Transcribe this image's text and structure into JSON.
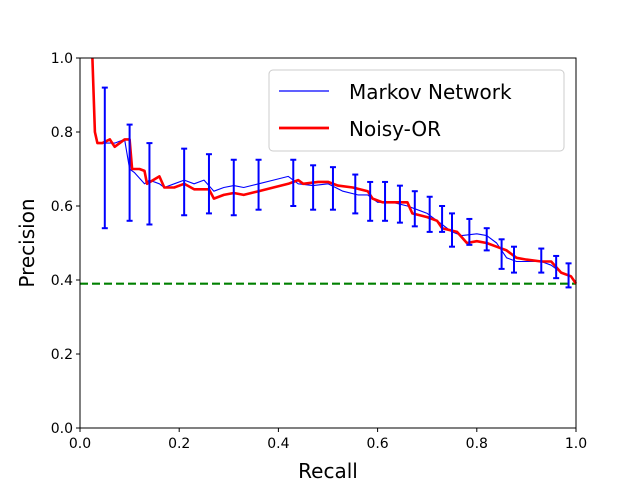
{
  "chart_data": {
    "type": "line",
    "title": "",
    "xlabel": "Recall",
    "ylabel": "Precision",
    "xlim": [
      0.0,
      1.0
    ],
    "ylim": [
      0.0,
      1.0
    ],
    "x_ticks": [
      "0.0",
      "0.2",
      "0.4",
      "0.6",
      "0.8",
      "1.0"
    ],
    "y_ticks": [
      "0.0",
      "0.2",
      "0.4",
      "0.6",
      "0.8",
      "1.0"
    ],
    "grid": false,
    "legend_position": "top-right",
    "series": [
      {
        "name": "Markov Network",
        "color": "#0000ff",
        "style": "solid-thin",
        "x": [
          0.025,
          0.03,
          0.035,
          0.05,
          0.07,
          0.09,
          0.1,
          0.11,
          0.13,
          0.14,
          0.16,
          0.17,
          0.19,
          0.21,
          0.23,
          0.25,
          0.27,
          0.29,
          0.31,
          0.33,
          0.36,
          0.39,
          0.42,
          0.44,
          0.47,
          0.5,
          0.53,
          0.56,
          0.58,
          0.6,
          0.63,
          0.66,
          0.68,
          0.7,
          0.73,
          0.75,
          0.77,
          0.8,
          0.82,
          0.84,
          0.86,
          0.88,
          0.9,
          0.93,
          0.95,
          0.97,
          0.99,
          1.0
        ],
        "y": [
          1.0,
          0.8,
          0.77,
          0.77,
          0.77,
          0.78,
          0.7,
          0.69,
          0.66,
          0.67,
          0.66,
          0.65,
          0.66,
          0.67,
          0.66,
          0.67,
          0.64,
          0.65,
          0.655,
          0.65,
          0.66,
          0.67,
          0.68,
          0.66,
          0.655,
          0.66,
          0.64,
          0.63,
          0.63,
          0.61,
          0.61,
          0.6,
          0.59,
          0.58,
          0.55,
          0.53,
          0.52,
          0.525,
          0.52,
          0.5,
          0.46,
          0.45,
          0.45,
          0.45,
          0.44,
          0.42,
          0.41,
          0.395
        ]
      },
      {
        "name": "Noisy-OR",
        "color": "#ff0000",
        "style": "solid-thick",
        "x": [
          0.025,
          0.03,
          0.035,
          0.045,
          0.06,
          0.07,
          0.09,
          0.1,
          0.105,
          0.12,
          0.13,
          0.135,
          0.16,
          0.17,
          0.19,
          0.21,
          0.23,
          0.26,
          0.27,
          0.29,
          0.31,
          0.33,
          0.36,
          0.39,
          0.42,
          0.44,
          0.45,
          0.48,
          0.5,
          0.52,
          0.55,
          0.58,
          0.59,
          0.61,
          0.63,
          0.66,
          0.67,
          0.7,
          0.72,
          0.73,
          0.76,
          0.78,
          0.8,
          0.82,
          0.84,
          0.86,
          0.88,
          0.9,
          0.93,
          0.95,
          0.97,
          0.99,
          1.0
        ],
        "y": [
          1.0,
          0.8,
          0.77,
          0.77,
          0.78,
          0.76,
          0.78,
          0.78,
          0.7,
          0.7,
          0.695,
          0.66,
          0.68,
          0.65,
          0.65,
          0.66,
          0.645,
          0.645,
          0.62,
          0.63,
          0.635,
          0.63,
          0.64,
          0.65,
          0.66,
          0.67,
          0.66,
          0.665,
          0.665,
          0.655,
          0.65,
          0.64,
          0.62,
          0.61,
          0.61,
          0.61,
          0.58,
          0.57,
          0.56,
          0.54,
          0.53,
          0.5,
          0.505,
          0.5,
          0.49,
          0.48,
          0.46,
          0.455,
          0.45,
          0.45,
          0.42,
          0.41,
          0.39
        ]
      }
    ],
    "error_bars": {
      "series": "Markov Network",
      "color": "#0000ff",
      "x": [
        0.05,
        0.1,
        0.14,
        0.21,
        0.26,
        0.31,
        0.36,
        0.43,
        0.47,
        0.51,
        0.555,
        0.585,
        0.615,
        0.645,
        0.675,
        0.705,
        0.73,
        0.75,
        0.785,
        0.82,
        0.85,
        0.875,
        0.93,
        0.96,
        0.985
      ],
      "y": [
        0.73,
        0.69,
        0.66,
        0.665,
        0.66,
        0.65,
        0.655,
        0.66,
        0.65,
        0.645,
        0.63,
        0.61,
        0.61,
        0.605,
        0.59,
        0.575,
        0.565,
        0.535,
        0.53,
        0.51,
        0.47,
        0.455,
        0.45,
        0.435,
        0.41
      ],
      "lo": [
        0.54,
        0.56,
        0.55,
        0.575,
        0.58,
        0.575,
        0.59,
        0.6,
        0.59,
        0.59,
        0.58,
        0.56,
        0.56,
        0.555,
        0.545,
        0.53,
        0.53,
        0.49,
        0.495,
        0.48,
        0.43,
        0.42,
        0.42,
        0.405,
        0.38
      ],
      "hi": [
        0.92,
        0.82,
        0.77,
        0.755,
        0.74,
        0.725,
        0.725,
        0.725,
        0.71,
        0.705,
        0.685,
        0.665,
        0.665,
        0.655,
        0.64,
        0.625,
        0.6,
        0.58,
        0.565,
        0.54,
        0.51,
        0.49,
        0.485,
        0.465,
        0.445
      ]
    },
    "baseline": {
      "y": 0.39,
      "color": "#008000",
      "style": "dashed"
    }
  }
}
